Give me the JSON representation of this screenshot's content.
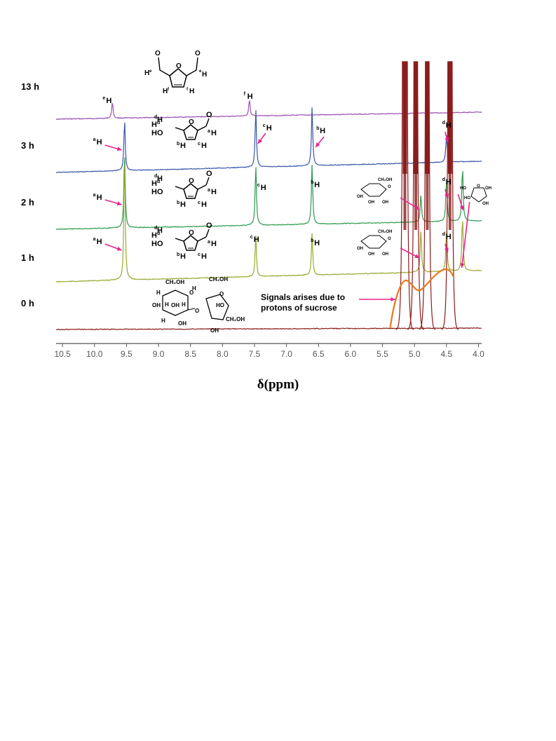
{
  "chart_data": {
    "type": "line",
    "title": "",
    "xlabel": "δ(ppm)",
    "ylabel": "",
    "xlim": [
      10.6,
      3.95
    ],
    "x_reversed": true,
    "x_ticks": [
      "10.5",
      "10.0",
      "9.5",
      "9.0",
      "8.5",
      "8.0",
      "7.5",
      "7.0",
      "6.5",
      "6.0",
      "5.5",
      "5.0",
      "4.5",
      "4.0"
    ],
    "x_tick_values": [
      10.5,
      10.0,
      9.5,
      9.0,
      8.5,
      8.0,
      7.5,
      7.0,
      6.5,
      6.0,
      5.5,
      5.0,
      4.5,
      4.0
    ],
    "grid": false,
    "legend": "none",
    "series": [
      {
        "name": "13 h",
        "color": "#9b4fb0",
        "peaks": [
          {
            "ppm": 9.72,
            "label_sup": "e",
            "label": "H"
          },
          {
            "ppm": 7.58,
            "label_sup": "f",
            "label": "H"
          }
        ]
      },
      {
        "name": "3 h",
        "color": "#3558a8",
        "peaks": [
          {
            "ppm": 9.53,
            "label_sup": "a",
            "label": "H"
          },
          {
            "ppm": 7.48,
            "label_sup": "c",
            "label": "H"
          },
          {
            "ppm": 6.6,
            "label_sup": "b",
            "label": "H"
          },
          {
            "ppm": 4.5,
            "label_sup": "d",
            "label": "H"
          }
        ]
      },
      {
        "name": "2 h",
        "color": "#2d9a4e",
        "peaks": [
          {
            "ppm": 9.53,
            "label_sup": "a",
            "label": "H"
          },
          {
            "ppm": 7.48,
            "label_sup": "c",
            "label": "H"
          },
          {
            "ppm": 6.6,
            "label_sup": "b",
            "label": "H"
          },
          {
            "ppm": 4.9,
            "label": "glucose"
          },
          {
            "ppm": 4.5,
            "label_sup": "d",
            "label": "H"
          },
          {
            "ppm": 4.25,
            "label": "fructose"
          }
        ]
      },
      {
        "name": "1 h",
        "color": "#9aa82d",
        "peaks": [
          {
            "ppm": 9.53,
            "label_sup": "a",
            "label": "H"
          },
          {
            "ppm": 7.48,
            "label_sup": "c",
            "label": "H"
          },
          {
            "ppm": 6.6,
            "label_sup": "b",
            "label": "H"
          },
          {
            "ppm": 4.9,
            "label": "glucose"
          },
          {
            "ppm": 4.5,
            "label_sup": "d",
            "label": "H"
          },
          {
            "ppm": 4.25,
            "label": "fructose"
          }
        ]
      },
      {
        "name": "0 h",
        "color": "#8b1c1c",
        "peaks": [
          {
            "ppm": 5.15,
            "label": "sucrose"
          },
          {
            "ppm": 4.98,
            "label": "sucrose"
          },
          {
            "ppm": 4.8,
            "label": "sucrose"
          },
          {
            "ppm": 4.45,
            "label": "sucrose"
          }
        ]
      }
    ],
    "annotations": [
      {
        "text_line1": "Signals arises due to",
        "text_line2": "protons of sucrose"
      }
    ],
    "structure_labels": {
      "CH2OH": "CH₂OH",
      "OH": "OH",
      "HO": "HO",
      "H": "H",
      "O": "O",
      "sup_a": "a",
      "sup_b": "b",
      "sup_c": "c",
      "sup_d": "d",
      "sup_e": "e",
      "sup_f": "f"
    }
  },
  "colors": {
    "arrow": "#e8248c",
    "sucrose_envelope": "#e8781e",
    "axis": "#555555",
    "tick_label": "#555555",
    "row_label": "#000000",
    "purple": "#9b4fb0",
    "blue": "#3558a8",
    "green": "#2d9a4e",
    "olive": "#9aa82d",
    "maroon": "#8b1c1c"
  }
}
